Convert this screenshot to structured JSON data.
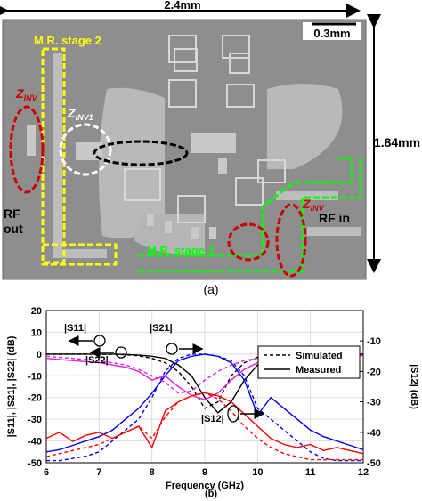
{
  "figure_a": {
    "width_label": "2.4mm",
    "scale_label": "0.3mm",
    "height_label": "1.84mm",
    "stage2": "M.R. stage 2",
    "stage1": "M.R. stage 1",
    "zinv_left": {
      "main": "Z",
      "sub": "INV"
    },
    "zinv1": {
      "main": "Z",
      "sub": "INV1"
    },
    "zinv_right": {
      "main": "Z",
      "sub": "INV"
    },
    "rf_out": [
      "RF",
      "out"
    ],
    "rf_in": "RF in",
    "caption": "(a)"
  },
  "chart_data": {
    "type": "line",
    "caption": "(b)",
    "xlabel": "Frequency (GHz)",
    "ylabel": "|S11|, |S21|, |S22| (dB)",
    "y2label": "|S12| (dB)",
    "x": [
      6,
      6.25,
      6.5,
      6.75,
      7,
      7.25,
      7.5,
      7.75,
      8,
      8.25,
      8.5,
      8.75,
      9,
      9.25,
      9.5,
      9.75,
      10,
      10.25,
      10.5,
      10.75,
      11,
      11.25,
      11.5,
      11.75,
      12
    ],
    "xlim": [
      6,
      12
    ],
    "xticks": [
      6,
      7,
      8,
      9,
      10,
      11,
      12
    ],
    "ylim": [
      -50,
      20
    ],
    "yticks": [
      -50,
      -40,
      -30,
      -20,
      -10,
      0,
      10,
      20
    ],
    "y2lim": [
      -50,
      0
    ],
    "y2ticks": [
      -50,
      -40,
      -30,
      -20,
      -10
    ],
    "grid": true,
    "legend": [
      "Simulated",
      "Measured"
    ],
    "annotations": [
      "|S11|",
      "|S21|",
      "|S22|",
      "|S12|"
    ],
    "series": [
      {
        "color": "#000000",
        "dash": true,
        "values": [
          0,
          0,
          0,
          0,
          0,
          -0.1,
          -0.3,
          -0.8,
          -2,
          -4,
          -8,
          -15,
          -25,
          -22,
          -10,
          -4,
          -1.5,
          -0.5,
          -0.2,
          -0.1,
          0,
          0,
          0,
          0,
          0
        ]
      },
      {
        "color": "#000000",
        "dash": false,
        "values": [
          0,
          0,
          0,
          0,
          0,
          0,
          -0.2,
          -0.5,
          -1,
          -2,
          -5,
          -10,
          -20,
          -27,
          -22,
          -12,
          -5,
          -2,
          -1,
          -0.5,
          -0.3,
          -0.2,
          -0.1,
          -0.1,
          -0.1
        ]
      },
      {
        "color": "#0000ee",
        "dash": true,
        "values": [
          -49,
          -49,
          -48,
          -47,
          -45,
          -40,
          -35,
          -30,
          -20,
          -8,
          -2,
          0,
          0,
          -1,
          -3,
          -10,
          -25,
          -30,
          -35,
          -40,
          -45,
          -48,
          -49,
          -49,
          -49
        ]
      },
      {
        "color": "#0000ee",
        "dash": false,
        "values": [
          -45,
          -44,
          -42,
          -40,
          -38,
          -35,
          -30,
          -25,
          -18,
          -10,
          -3,
          -1,
          0,
          -1,
          -4,
          -12,
          -28,
          -20,
          -25,
          -30,
          -35,
          -38,
          -40,
          -42,
          -44
        ]
      },
      {
        "color": "#e020e0",
        "dash": true,
        "values": [
          -1,
          -1.5,
          -2,
          -2.5,
          -3,
          -4,
          -5,
          -7,
          -10,
          -13,
          -18,
          -17,
          -12,
          -8,
          -5,
          -3,
          -2,
          -1,
          -0.8,
          -0.5,
          -0.5,
          -0.5,
          -0.5,
          -0.5,
          -0.5
        ]
      },
      {
        "color": "#e020e0",
        "dash": false,
        "values": [
          -2,
          -2.5,
          -3,
          -3.5,
          -4,
          -5,
          -6,
          -8,
          -12,
          -10,
          -15,
          -19,
          -21,
          -18,
          -12,
          -7,
          -4,
          -3,
          -2,
          -1.5,
          -1,
          -1,
          -0.8,
          -0.8,
          -0.8
        ]
      },
      {
        "color": "#ff0000",
        "dash": true,
        "axis": "y2",
        "values": [
          -48,
          -47,
          -46,
          -45,
          -44,
          -42,
          -40,
          -38,
          -42,
          -35,
          -30,
          -28,
          -27,
          -29,
          -33,
          -38,
          -42,
          -45,
          -47,
          -48,
          -49,
          -49,
          -49,
          -49,
          -49
        ]
      },
      {
        "color": "#ff0000",
        "dash": false,
        "axis": "y2",
        "values": [
          -42,
          -40,
          -43,
          -41,
          -40,
          -42,
          -40,
          -38,
          -45,
          -33,
          -30,
          -28,
          -27,
          -28,
          -30,
          -34,
          -38,
          -42,
          -44,
          -45,
          -44,
          -46,
          -45,
          -46,
          -47
        ]
      }
    ]
  }
}
